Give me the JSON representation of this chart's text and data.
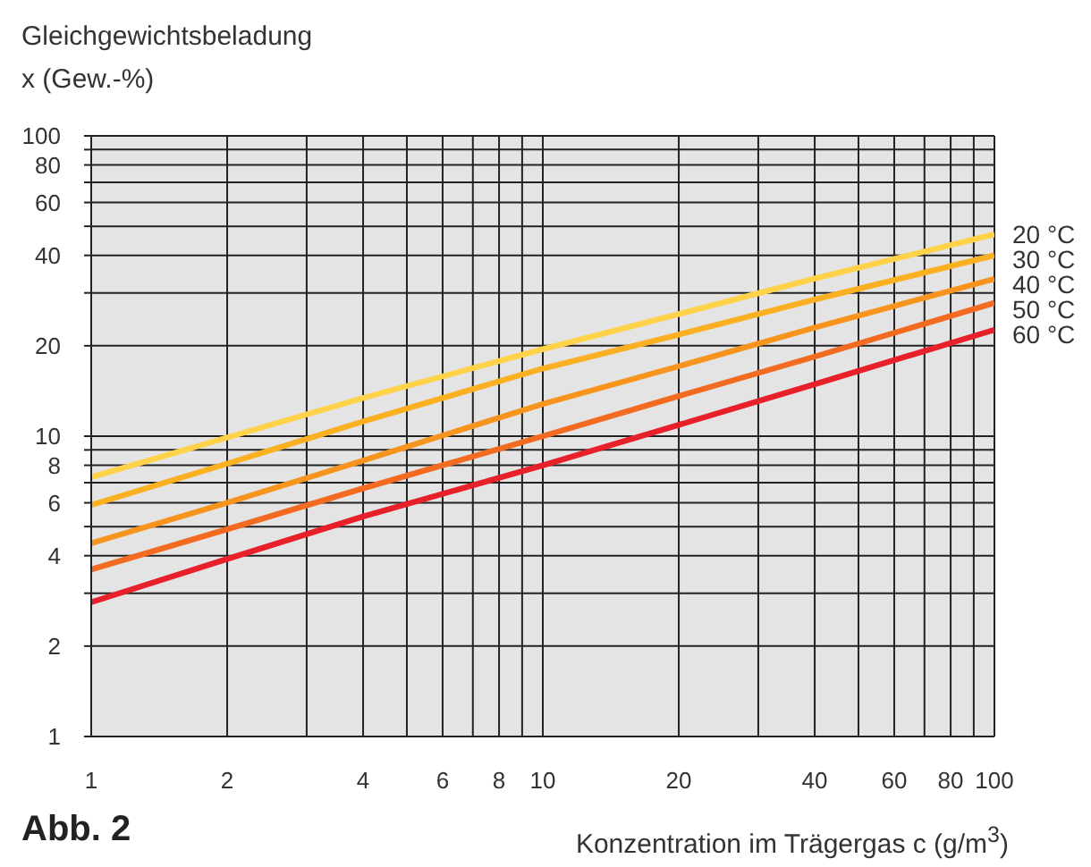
{
  "chart_data": {
    "type": "line",
    "xlabel": "Konzentration im Trägergas c (g/m$^{3}$)",
    "ylabel": "Gleichgewichtsbeladung\nx (Gew.-%)",
    "annotations": [
      "Abb. 2"
    ],
    "x": [
      1,
      2,
      4,
      10,
      20,
      40,
      100
    ],
    "series": [
      {
        "name": "20 °C",
        "color": "#ffd24a",
        "values": [
          7.3,
          9.9,
          13.4,
          19.5,
          25.5,
          33.5,
          47
        ]
      },
      {
        "name": "30 °C",
        "color": "#fbb022",
        "values": [
          5.9,
          8.1,
          11.2,
          16.8,
          21.8,
          28.5,
          40
        ]
      },
      {
        "name": "40 °C",
        "color": "#f7941d",
        "values": [
          4.4,
          6.0,
          8.3,
          12.8,
          17.1,
          23,
          33.4
        ]
      },
      {
        "name": "50 °C",
        "color": "#f26b21",
        "values": [
          3.6,
          4.9,
          6.7,
          10,
          13.6,
          18.4,
          27.8
        ]
      },
      {
        "name": "60 °C",
        "color": "#e8202a",
        "values": [
          2.8,
          3.9,
          5.4,
          8.0,
          10.9,
          14.9,
          22.6
        ]
      }
    ],
    "log": "xy",
    "xlim": [
      1,
      100
    ],
    "ylim": [
      1,
      100
    ],
    "xticks": [
      1,
      2,
      {
        "value": 3,
        "label": null
      },
      4,
      {
        "value": 5,
        "label": null
      },
      6,
      {
        "value": 7,
        "label": null
      },
      8,
      {
        "value": 9,
        "label": null
      },
      10,
      20,
      {
        "value": 30,
        "label": null
      },
      40,
      {
        "value": 50,
        "label": null
      },
      60,
      {
        "value": 70,
        "label": null
      },
      80,
      {
        "value": 90,
        "label": null
      },
      100
    ],
    "yticks": [
      1,
      2,
      {
        "value": 3,
        "label": null
      },
      4,
      {
        "value": 5,
        "label": null
      },
      6,
      {
        "value": 7,
        "label": null
      },
      8,
      {
        "value": 9,
        "label": null
      },
      10,
      20,
      {
        "value": 30,
        "label": null
      },
      40,
      {
        "value": 50,
        "label": null
      },
      60,
      {
        "value": 70,
        "label": null
      },
      80,
      {
        "value": 90,
        "label": null
      },
      100
    ],
    "grid": true,
    "line_style": "solid"
  }
}
